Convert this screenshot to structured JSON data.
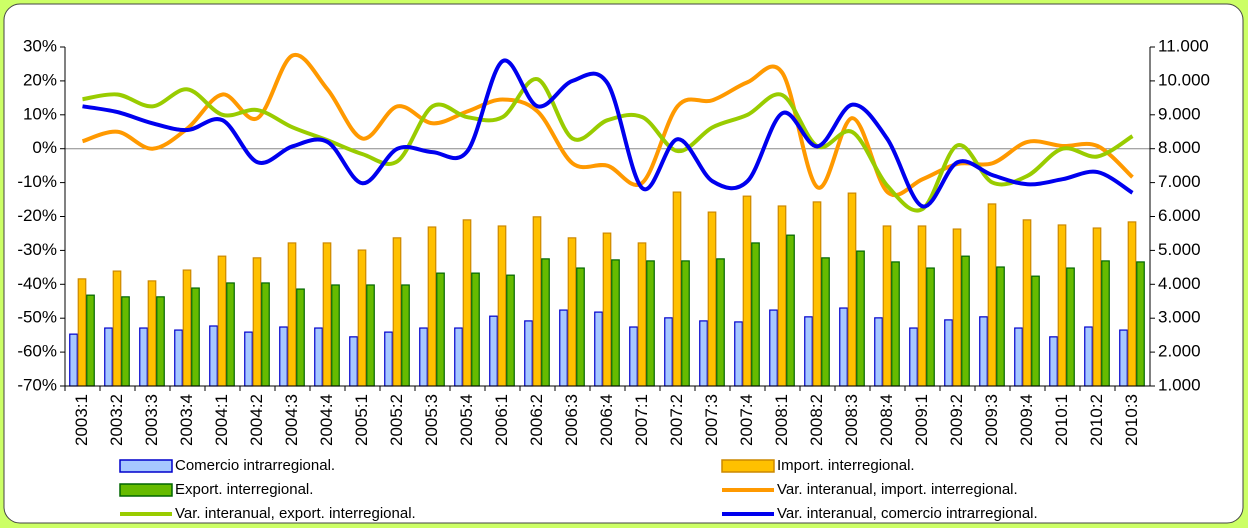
{
  "chart_data": {
    "type": "bar-line",
    "categories": [
      "2003:1",
      "2003:2",
      "2003:3",
      "2003:4",
      "2004:1",
      "2004:2",
      "2004:3",
      "2004:4",
      "2005:1",
      "2005:2",
      "2005:3",
      "2005:4",
      "2006:1",
      "2006:2",
      "2006:3",
      "2006:4",
      "2007:1",
      "2007:2",
      "2007:3",
      "2007:4",
      "2008:1",
      "2008:2",
      "2008:3",
      "2008:4",
      "2009:1",
      "2009:2",
      "2009:3",
      "2009:4",
      "2010:1",
      "2010:2",
      "2010:3"
    ],
    "series": [
      {
        "name": "Comercio intrarregional.",
        "type": "bar",
        "axis": "y2",
        "color": "#a6c8ff",
        "edge": "#0000cc",
        "values": [
          2530,
          2710,
          2710,
          2650,
          2770,
          2590,
          2740,
          2710,
          2450,
          2590,
          2710,
          2710,
          3060,
          2920,
          3240,
          3180,
          2740,
          3010,
          2920,
          2890,
          3240,
          3040,
          3300,
          3010,
          2710,
          2950,
          3040,
          2710,
          2450,
          2740,
          2650
        ]
      },
      {
        "name": "Import. interregional.",
        "type": "bar",
        "axis": "y2",
        "color": "#ffc000",
        "edge": "#cc8800",
        "values": [
          4160,
          4390,
          4100,
          4420,
          4830,
          4780,
          5220,
          5220,
          5010,
          5370,
          5690,
          5900,
          5720,
          5990,
          5370,
          5510,
          5220,
          6720,
          6130,
          6600,
          6310,
          6430,
          6690,
          5720,
          5720,
          5630,
          6370,
          5900,
          5750,
          5660,
          5840
        ]
      },
      {
        "name": "Export. interregional.",
        "type": "bar",
        "axis": "y2",
        "color": "#66bb00",
        "edge": "#006600",
        "values": [
          3680,
          3630,
          3630,
          3890,
          4040,
          4040,
          3860,
          3980,
          3980,
          3980,
          4330,
          4330,
          4270,
          4750,
          4480,
          4720,
          4690,
          4690,
          4750,
          5220,
          5450,
          4780,
          4980,
          4660,
          4480,
          4830,
          4510,
          4240,
          4480,
          4690,
          4660
        ]
      },
      {
        "name": "Var. interanual, import. interregional.",
        "type": "line",
        "axis": "y",
        "color": "#ff9900",
        "values": [
          2.2,
          5,
          0,
          6,
          16,
          9,
          27.5,
          17.5,
          3,
          12.5,
          7.5,
          11,
          14.5,
          11,
          -4.3,
          -5,
          -10,
          12.5,
          14.3,
          19.6,
          22.3,
          -11.4,
          9,
          -12.8,
          -9,
          -4.5,
          -4.3,
          2,
          0.8,
          0.8,
          -8.4
        ]
      },
      {
        "name": "Var. interanual, export. interregional.",
        "type": "line",
        "axis": "y",
        "color": "#99cc00",
        "values": [
          14.6,
          16,
          12.5,
          17.5,
          10,
          11.4,
          6.3,
          2.5,
          -1.6,
          -3.7,
          12.5,
          9.3,
          9.3,
          20.5,
          3,
          8.4,
          9.3,
          -0.7,
          6.3,
          10,
          15.8,
          0.7,
          4.9,
          -11,
          -17.8,
          1,
          -10,
          -8,
          0,
          -2.3,
          3.7
        ]
      },
      {
        "name": "Var. interanual, comercio intrarregional.",
        "type": "line",
        "axis": "y",
        "color": "#0000ee",
        "values": [
          12.5,
          10.8,
          7.5,
          5.5,
          8.4,
          -4,
          0.7,
          2,
          -10.2,
          0,
          -1,
          -0.7,
          25.8,
          12.5,
          20,
          19.3,
          -11.7,
          2.8,
          -9.6,
          -9.6,
          10.5,
          0.7,
          13,
          2.8,
          -17,
          -4,
          -7.8,
          -10.5,
          -9,
          -6.9,
          -13
        ]
      }
    ],
    "ylim": [
      -70,
      30
    ],
    "yticks": [
      {
        "value": -70,
        "label": "-70%"
      },
      {
        "value": -60,
        "label": "-60%"
      },
      {
        "value": -50,
        "label": "-50%"
      },
      {
        "value": -40,
        "label": "-40%"
      },
      {
        "value": -30,
        "label": "-30%"
      },
      {
        "value": -20,
        "label": "-20%"
      },
      {
        "value": -10,
        "label": "-10%"
      },
      {
        "value": 0,
        "label": "0%"
      },
      {
        "value": 10,
        "label": "10%"
      },
      {
        "value": 20,
        "label": "20%"
      },
      {
        "value": 30,
        "label": "30%"
      }
    ],
    "y2lim": [
      1000,
      11000
    ],
    "y2ticks": [
      {
        "value": 1000,
        "label": "1.000"
      },
      {
        "value": 2000,
        "label": "2.000"
      },
      {
        "value": 3000,
        "label": "3.000"
      },
      {
        "value": 4000,
        "label": "4.000"
      },
      {
        "value": 5000,
        "label": "5.000"
      },
      {
        "value": 6000,
        "label": "6.000"
      },
      {
        "value": 7000,
        "label": "7.000"
      },
      {
        "value": 8000,
        "label": "8.000"
      },
      {
        "value": 9000,
        "label": "9.000"
      },
      {
        "value": 10000,
        "label": "10.000"
      },
      {
        "value": 11000,
        "label": "11.000"
      }
    ],
    "legend": "bottom"
  }
}
